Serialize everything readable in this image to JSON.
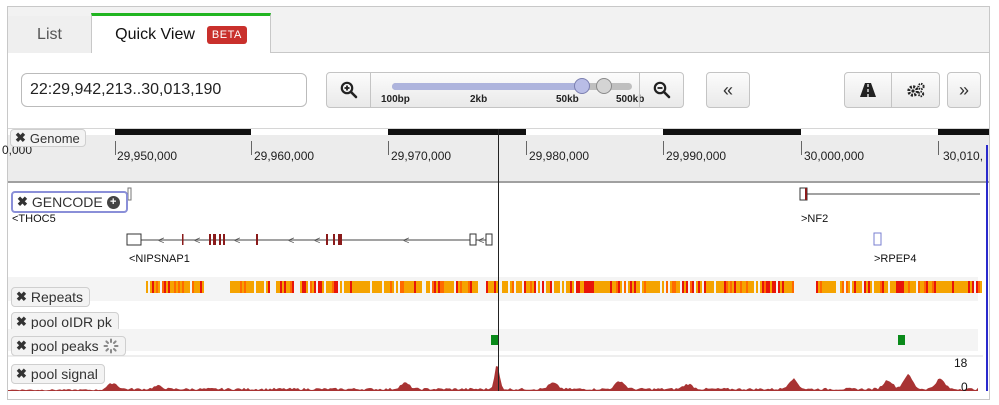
{
  "tabs": [
    {
      "label": "List"
    },
    {
      "label": "Quick View",
      "badge": "BETA"
    }
  ],
  "toolbar": {
    "locus_value": "22:29,942,213..30,013,190",
    "zoom_in_icon": "zoom-in-icon",
    "zoom_out_icon": "zoom-out-icon",
    "slider_labels": [
      "100bp",
      "2kb",
      "50kb",
      "500kb"
    ],
    "collapse_label": "«",
    "highlight_icon": "road-icon",
    "settings_icon": "gears-icon",
    "expand_label": "»"
  },
  "ruler": {
    "labels": [
      "29,950,000",
      "29,960,000",
      "29,970,000",
      "29,980,000",
      "29,990,000",
      "30,000,000",
      "30,010,"
    ],
    "left_partial": "0,000"
  },
  "tracks": [
    {
      "label": "Genome"
    },
    {
      "label": "GENCODE"
    },
    {
      "label": "Repeats"
    },
    {
      "label": "pool oIDR pk"
    },
    {
      "label": "pool peaks"
    },
    {
      "label": "pool signal"
    }
  ],
  "genes": [
    {
      "label": "<THOC5"
    },
    {
      "label": "<NIPSNAP1"
    },
    {
      "label": ">NF2"
    },
    {
      "label": ">RPEP4"
    }
  ],
  "signal_axis": {
    "max": "18",
    "min": "0"
  },
  "colors": {
    "accent_green": "#21b521",
    "beta_red": "#c9302c",
    "signal": "#a83333",
    "peak_green": "#0a8a1a",
    "repeat_orange": "#f5a300",
    "repeat_red": "#e8140a"
  }
}
